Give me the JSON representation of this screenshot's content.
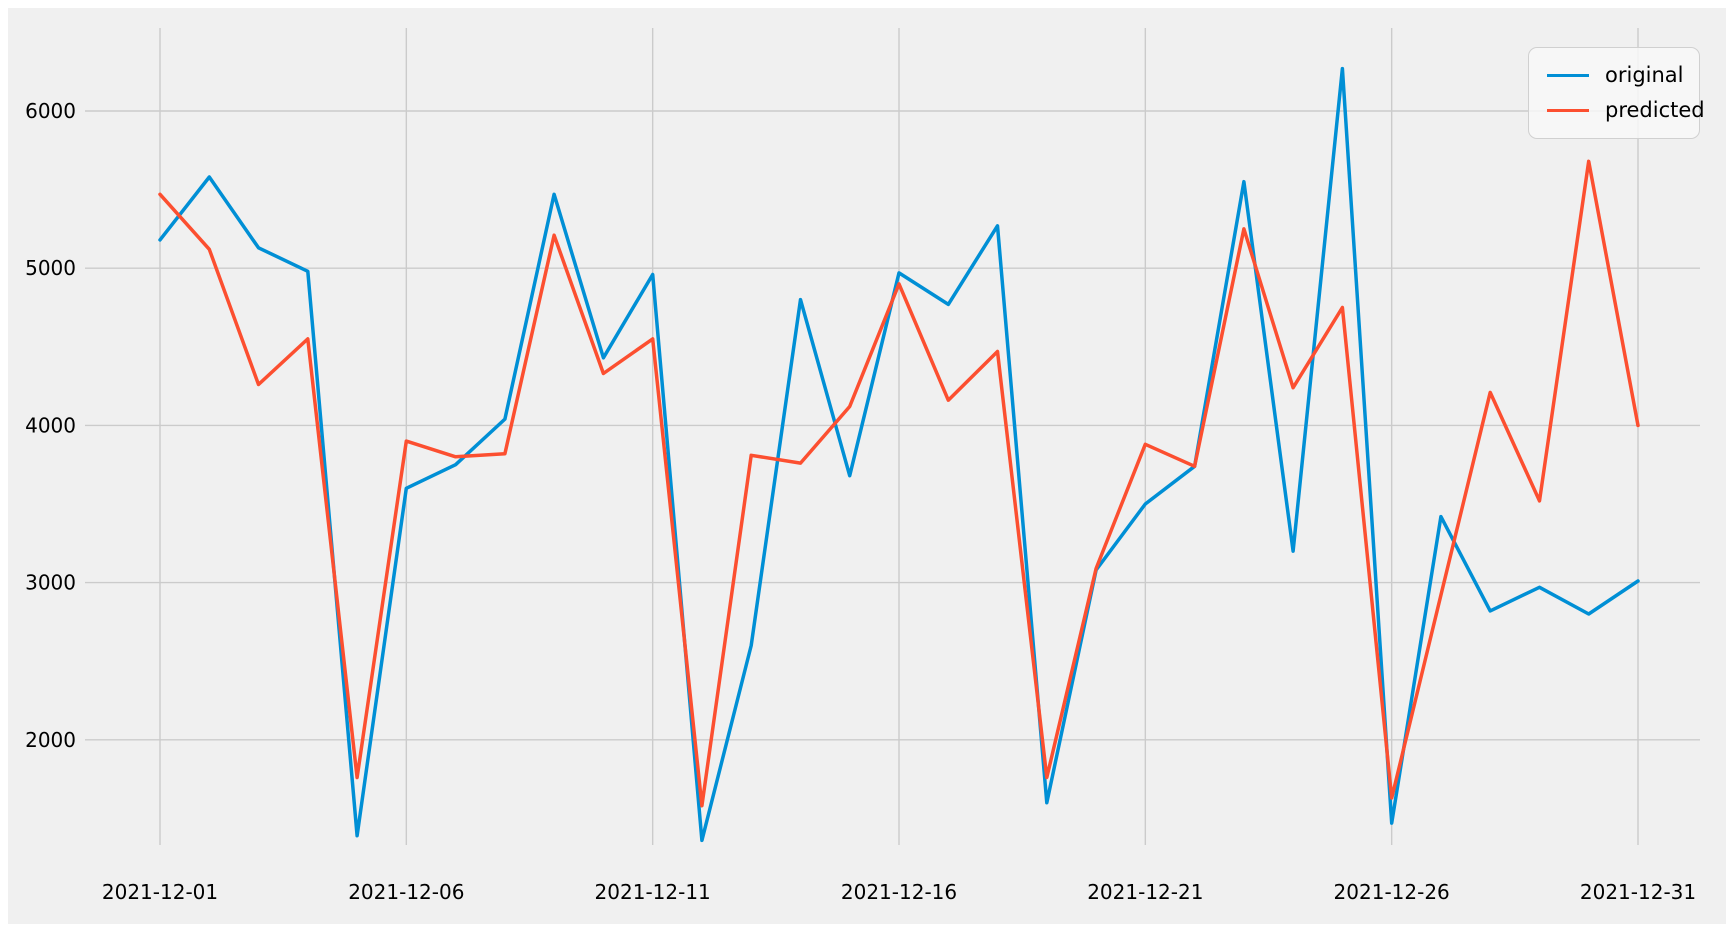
{
  "figure": {
    "background_color": "#f0f0f0",
    "grid_color": "#cbcbcb",
    "text_color": "#000000"
  },
  "legend": {
    "items": [
      {
        "label": "original",
        "color": "#008fd5"
      },
      {
        "label": "predicted",
        "color": "#fc4f30"
      }
    ]
  },
  "chart_data": {
    "type": "line",
    "title": "",
    "xlabel": "",
    "ylabel": "",
    "x": [
      "2021-12-01",
      "2021-12-02",
      "2021-12-03",
      "2021-12-04",
      "2021-12-05",
      "2021-12-06",
      "2021-12-07",
      "2021-12-08",
      "2021-12-09",
      "2021-12-10",
      "2021-12-11",
      "2021-12-12",
      "2021-12-13",
      "2021-12-14",
      "2021-12-15",
      "2021-12-16",
      "2021-12-17",
      "2021-12-18",
      "2021-12-19",
      "2021-12-20",
      "2021-12-21",
      "2021-12-22",
      "2021-12-23",
      "2021-12-24",
      "2021-12-25",
      "2021-12-26",
      "2021-12-27",
      "2021-12-28",
      "2021-12-29",
      "2021-12-30",
      "2021-12-31"
    ],
    "series": [
      {
        "name": "original",
        "color": "#008fd5",
        "values": [
          5180,
          5580,
          5130,
          4980,
          1390,
          3600,
          3750,
          4040,
          5470,
          4430,
          4960,
          1360,
          2600,
          4800,
          3680,
          4970,
          4770,
          5270,
          1600,
          3080,
          3500,
          3740,
          5550,
          3200,
          6270,
          1470,
          3420,
          2820,
          2970,
          2800,
          3010
        ]
      },
      {
        "name": "predicted",
        "color": "#fc4f30",
        "values": [
          5470,
          5120,
          4260,
          4550,
          1760,
          3900,
          3800,
          3820,
          5210,
          4330,
          4550,
          1580,
          3810,
          3760,
          4120,
          4900,
          4160,
          4470,
          1760,
          3090,
          3880,
          3740,
          5250,
          4240,
          4750,
          1630,
          2920,
          4210,
          3520,
          5680,
          4000
        ]
      }
    ],
    "x_tick_labels": [
      "2021-12-01",
      "2021-12-06",
      "2021-12-11",
      "2021-12-16",
      "2021-12-21",
      "2021-12-26",
      "2021-12-31"
    ],
    "y_ticks": [
      2000,
      3000,
      4000,
      5000,
      6000
    ],
    "ylim": [
      1330,
      6530
    ],
    "grid": true,
    "legend_position": "upper right"
  }
}
